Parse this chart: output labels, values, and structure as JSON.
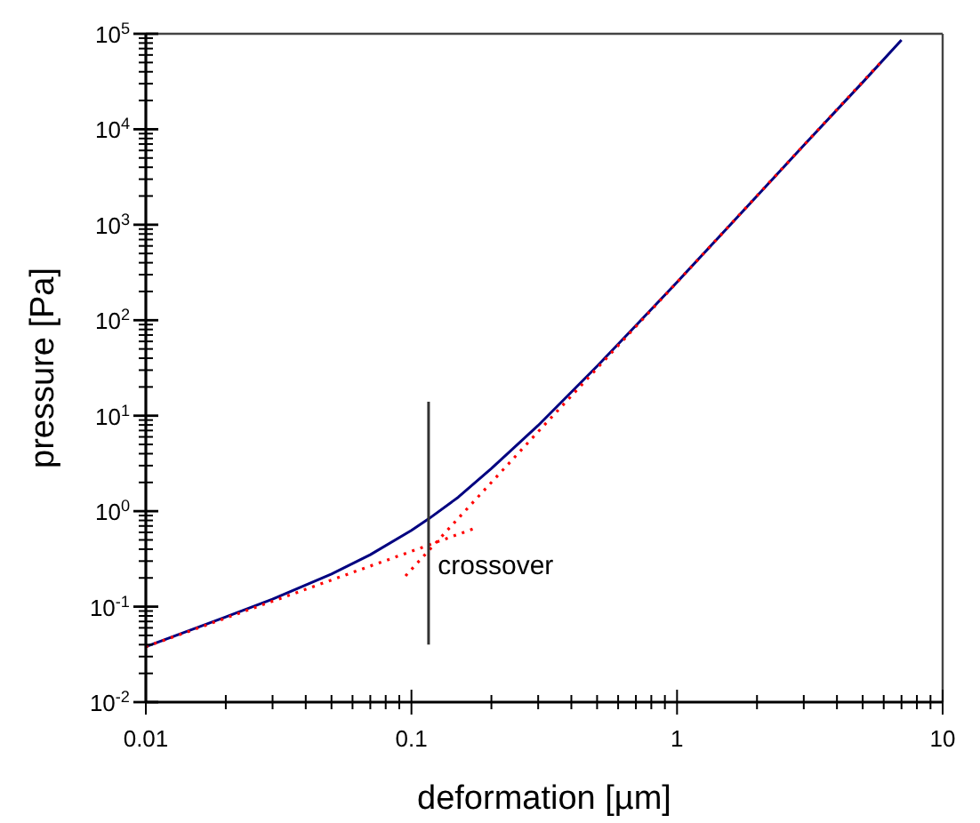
{
  "chart_data": {
    "type": "line",
    "xlabel": "deformation [µm]",
    "ylabel": "pressure [Pa]",
    "log": "xy",
    "grid": false,
    "xlim": [
      0.01,
      10
    ],
    "ylim": [
      0.01,
      100000
    ],
    "xticks": [
      0.01,
      {
        "value": 0.02,
        "label": null
      },
      {
        "value": 0.03,
        "label": null
      },
      {
        "value": 0.04,
        "label": null
      },
      {
        "value": 0.05,
        "label": null
      },
      {
        "value": 0.06,
        "label": null
      },
      {
        "value": 0.07,
        "label": null
      },
      {
        "value": 0.08,
        "label": null
      },
      {
        "value": 0.09,
        "label": null
      },
      0.1,
      {
        "value": 0.2,
        "label": null
      },
      {
        "value": 0.3,
        "label": null
      },
      {
        "value": 0.4,
        "label": null
      },
      {
        "value": 0.5,
        "label": null
      },
      {
        "value": 0.6,
        "label": null
      },
      {
        "value": 0.7,
        "label": null
      },
      {
        "value": 0.8,
        "label": null
      },
      {
        "value": 0.9,
        "label": null
      },
      1,
      {
        "value": 2,
        "label": null
      },
      {
        "value": 3,
        "label": null
      },
      {
        "value": 4,
        "label": null
      },
      {
        "value": 5,
        "label": null
      },
      {
        "value": 6,
        "label": null
      },
      {
        "value": 7,
        "label": null
      },
      {
        "value": 8,
        "label": null
      },
      {
        "value": 9,
        "label": null
      },
      10
    ],
    "yticks": [
      {
        "value": 0.01,
        "label": "10$^{-2}$"
      },
      {
        "value": 0.1,
        "label": "10$^{-1}$"
      },
      {
        "value": 1,
        "label": "10$^{0}$"
      },
      {
        "value": 10,
        "label": "10$^{1}$"
      },
      {
        "value": 100,
        "label": "10$^{2}$"
      },
      {
        "value": 1000,
        "label": "10$^{3}$"
      },
      {
        "value": 10000,
        "label": "10$^{4}$"
      },
      {
        "value": 100000,
        "label": "10$^{5}$"
      }
    ],
    "series": [
      {
        "color": "#000080",
        "line_style": "solid",
        "x": [
          0.01,
          0.02,
          0.03,
          0.05,
          0.07,
          0.1,
          0.116,
          0.15,
          0.2,
          0.3,
          0.5,
          0.7,
          1,
          2,
          3,
          5,
          7
        ],
        "values": [
          0.038,
          0.078,
          0.12,
          0.22,
          0.35,
          0.63,
          0.83,
          1.4,
          2.8,
          7.9,
          33,
          88,
          250,
          2000,
          6800,
          31000,
          86000
        ]
      },
      {
        "color": "#ff0000",
        "line_style": "dotted",
        "x": [
          0.01,
          0.02,
          0.05,
          0.1,
          0.17
        ],
        "values": [
          0.038,
          0.076,
          0.19,
          0.38,
          0.65
        ]
      },
      {
        "color": "#ff0000",
        "line_style": "dotted",
        "x": [
          0.095,
          0.15,
          0.3,
          1,
          3,
          5.8
        ],
        "values": [
          0.21,
          0.84,
          6.8,
          250,
          6800,
          49000
        ]
      },
      {
        "color": "#333333",
        "line_style": "solid",
        "x": [
          0.116,
          0.116
        ],
        "values": [
          14,
          0.04
        ]
      }
    ],
    "annotations": [
      {
        "text": "crossover",
        "x": 0.12,
        "y": 0.27
      }
    ]
  }
}
